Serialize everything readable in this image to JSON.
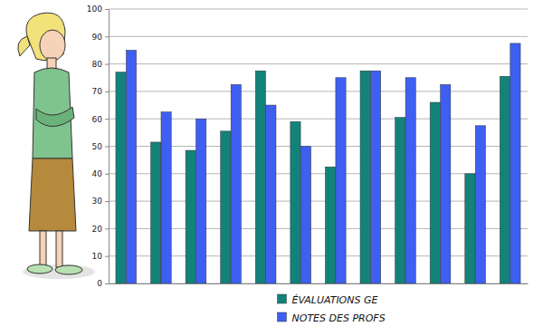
{
  "chart_data": {
    "type": "bar",
    "categories": [
      null,
      null,
      null,
      null,
      null,
      null,
      null,
      null,
      null,
      null,
      null,
      null
    ],
    "series": [
      {
        "name": "ÉVALUATIONS GE",
        "color": "#13837a",
        "values": [
          77,
          51.5,
          48.5,
          55.5,
          77.5,
          59,
          42.5,
          77.5,
          60.5,
          66,
          40,
          75.5
        ]
      },
      {
        "name": "NOTES DES PROFS",
        "color": "#3e5ff2",
        "values": [
          85,
          62.5,
          60,
          72.5,
          65,
          50,
          75,
          77.5,
          75,
          72.5,
          57.5,
          87.5
        ]
      }
    ],
    "ylim": [
      0,
      100
    ],
    "yticks": [
      0,
      10,
      20,
      30,
      40,
      50,
      60,
      70,
      80,
      90,
      100
    ],
    "grid": true,
    "legend": "bottom",
    "tick_labels": "y"
  }
}
